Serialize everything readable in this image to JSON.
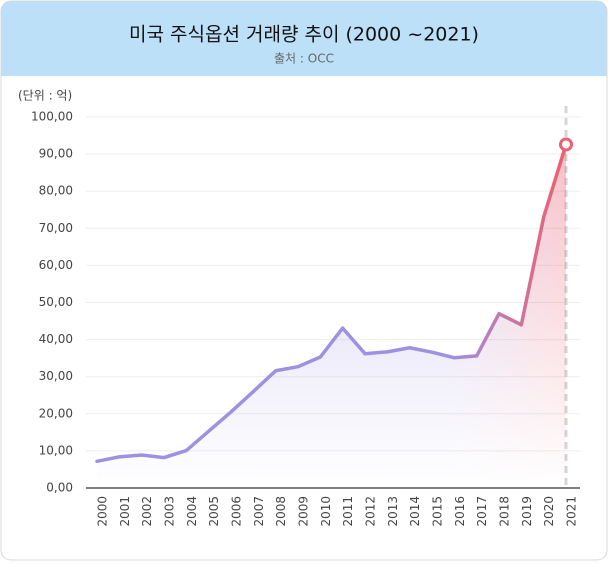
{
  "chart_data": {
    "type": "line",
    "title": "미국 주식옵션 거래량 추이 (2000 ~2021)",
    "subtitle": "출처 : OCC",
    "y_label": "(단위 : 억)",
    "categories": [
      "2000",
      "2001",
      "2002",
      "2003",
      "2004",
      "2005",
      "2006",
      "2007",
      "2008",
      "2009",
      "2010",
      "2011",
      "2012",
      "2013",
      "2014",
      "2015",
      "2016",
      "2017",
      "2018",
      "2019",
      "2020",
      "2021"
    ],
    "values": [
      7.2,
      8.4,
      8.9,
      8.2,
      10.1,
      15.3,
      20.5,
      26.0,
      31.6,
      32.7,
      35.3,
      43.1,
      36.2,
      36.7,
      37.8,
      36.6,
      35.1,
      35.6,
      47.0,
      44.0,
      73.0,
      92.6
    ],
    "color": "#9d91e1",
    "highlight_color": "#ef5f6d",
    "ylim": [
      0,
      100
    ],
    "yticks": [
      {
        "value": 0,
        "label": "0,00"
      },
      {
        "value": 10,
        "label": "10,00"
      },
      {
        "value": 20,
        "label": "20,00"
      },
      {
        "value": 30,
        "label": "30,00"
      },
      {
        "value": 40,
        "label": "40,00"
      },
      {
        "value": 50,
        "label": "50,00"
      },
      {
        "value": 60,
        "label": "60,00"
      },
      {
        "value": 70,
        "label": "70,00"
      },
      {
        "value": 80,
        "label": "80,00"
      },
      {
        "value": 90,
        "label": "90,00"
      },
      {
        "value": 100,
        "label": "100,00"
      }
    ],
    "grid": true
  }
}
